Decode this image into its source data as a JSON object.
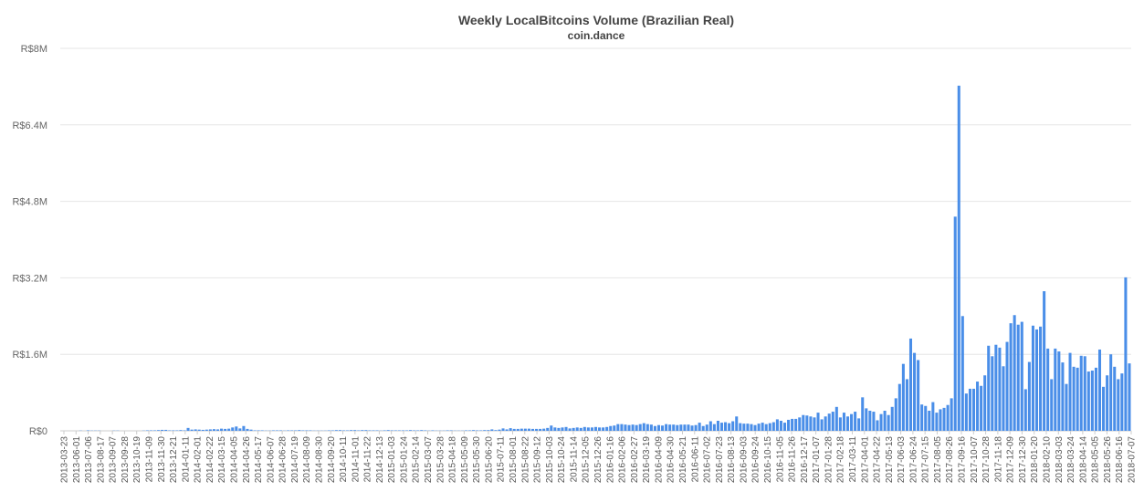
{
  "chart_data": {
    "type": "bar",
    "title": "Weekly LocalBitcoins Volume (Brazilian Real)",
    "subtitle": "coin.dance",
    "xlabel": "",
    "ylabel": "",
    "ylim": [
      0,
      8000000
    ],
    "y_ticks": [
      {
        "value": 0,
        "label": "R$0"
      },
      {
        "value": 1600000,
        "label": "R$1.6M"
      },
      {
        "value": 3200000,
        "label": "R$3.2M"
      },
      {
        "value": 4800000,
        "label": "R$4.8M"
      },
      {
        "value": 6400000,
        "label": "R$6.4M"
      },
      {
        "value": 8000000,
        "label": "R$8M"
      }
    ],
    "x_tick_labels": [
      "2013-03-23",
      "2013-06-01",
      "2013-07-06",
      "2013-08-17",
      "2013-09-07",
      "2013-09-28",
      "2013-10-19",
      "2013-11-09",
      "2013-11-30",
      "2013-12-21",
      "2014-01-11",
      "2014-02-01",
      "2014-02-22",
      "2014-03-15",
      "2014-04-05",
      "2014-04-26",
      "2014-05-17",
      "2014-06-07",
      "2014-06-28",
      "2014-07-19",
      "2014-08-09",
      "2014-08-30",
      "2014-09-20",
      "2014-10-11",
      "2014-11-01",
      "2014-11-22",
      "2014-12-13",
      "2015-01-03",
      "2015-01-24",
      "2015-02-14",
      "2015-03-07",
      "2015-03-28",
      "2015-04-18",
      "2015-05-09",
      "2015-05-30",
      "2015-06-20",
      "2015-07-11",
      "2015-08-01",
      "2015-08-22",
      "2015-09-12",
      "2015-10-03",
      "2015-10-24",
      "2015-11-14",
      "2015-12-05",
      "2015-12-26",
      "2016-01-16",
      "2016-02-06",
      "2016-02-27",
      "2016-03-19",
      "2016-04-09",
      "2016-04-30",
      "2016-05-21",
      "2016-06-11",
      "2016-07-02",
      "2016-07-23",
      "2016-08-13",
      "2016-09-03",
      "2016-09-24",
      "2016-10-15",
      "2016-11-05",
      "2016-11-26",
      "2016-12-17",
      "2017-01-07",
      "2017-01-28",
      "2017-02-18",
      "2017-03-11",
      "2017-04-01",
      "2017-04-22",
      "2017-05-13",
      "2017-06-03",
      "2017-06-24",
      "2017-07-15",
      "2017-08-05",
      "2017-08-26",
      "2017-09-16",
      "2017-10-07",
      "2017-10-28",
      "2017-11-18",
      "2017-12-09",
      "2017-12-30",
      "2018-01-20",
      "2018-02-10",
      "2018-03-03",
      "2018-03-24",
      "2018-04-14",
      "2018-05-05",
      "2018-05-26",
      "2018-06-16",
      "2018-07-07"
    ],
    "values": [
      0,
      0,
      0,
      0,
      0,
      5000,
      0,
      10000,
      5000,
      5000,
      5000,
      0,
      0,
      0,
      5000,
      5000,
      0,
      0,
      0,
      0,
      0,
      0,
      5000,
      10000,
      10000,
      10000,
      15000,
      20000,
      20000,
      10000,
      10000,
      10000,
      15000,
      10000,
      60000,
      25000,
      30000,
      25000,
      20000,
      25000,
      30000,
      35000,
      30000,
      45000,
      40000,
      45000,
      70000,
      90000,
      50000,
      100000,
      40000,
      25000,
      10000,
      10000,
      10000,
      5000,
      5000,
      10000,
      10000,
      10000,
      5000,
      10000,
      10000,
      10000,
      15000,
      10000,
      10000,
      10000,
      5000,
      5000,
      5000,
      5000,
      10000,
      10000,
      15000,
      15000,
      10000,
      10000,
      15000,
      15000,
      10000,
      15000,
      15000,
      10000,
      10000,
      10000,
      5000,
      10000,
      15000,
      10000,
      10000,
      10000,
      10000,
      10000,
      15000,
      10000,
      10000,
      15000,
      10000,
      5000,
      10000,
      5000,
      5000,
      5000,
      10000,
      10000,
      5000,
      5000,
      5000,
      10000,
      10000,
      15000,
      10000,
      10000,
      15000,
      15000,
      30000,
      15000,
      25000,
      50000,
      30000,
      55000,
      40000,
      40000,
      45000,
      45000,
      45000,
      40000,
      40000,
      40000,
      45000,
      60000,
      110000,
      70000,
      60000,
      70000,
      80000,
      50000,
      60000,
      70000,
      60000,
      80000,
      70000,
      70000,
      80000,
      70000,
      70000,
      80000,
      100000,
      110000,
      140000,
      140000,
      130000,
      120000,
      130000,
      120000,
      140000,
      160000,
      140000,
      130000,
      100000,
      120000,
      110000,
      140000,
      130000,
      130000,
      120000,
      130000,
      130000,
      130000,
      110000,
      120000,
      170000,
      100000,
      130000,
      200000,
      140000,
      210000,
      170000,
      180000,
      160000,
      200000,
      300000,
      160000,
      150000,
      150000,
      140000,
      120000,
      150000,
      170000,
      140000,
      160000,
      180000,
      240000,
      210000,
      170000,
      230000,
      250000,
      250000,
      280000,
      330000,
      320000,
      300000,
      280000,
      380000,
      240000,
      300000,
      360000,
      400000,
      500000,
      280000,
      380000,
      300000,
      350000,
      400000,
      260000,
      700000,
      470000,
      420000,
      400000,
      220000,
      350000,
      420000,
      330000,
      500000,
      680000,
      980000,
      1400000,
      1080000,
      1930000,
      1630000,
      1480000,
      550000,
      520000,
      420000,
      600000,
      380000,
      450000,
      480000,
      540000,
      680000,
      4480000,
      7220000,
      2400000,
      780000,
      880000,
      880000,
      1030000,
      940000,
      1160000,
      1780000,
      1560000,
      1800000,
      1740000,
      1350000,
      1860000,
      2250000,
      2420000,
      2220000,
      2280000,
      870000,
      1440000,
      2200000,
      2120000,
      2180000,
      2920000,
      1720000,
      1080000,
      1720000,
      1660000,
      1430000,
      980000,
      1630000,
      1340000,
      1320000,
      1570000,
      1560000,
      1240000,
      1260000,
      1320000,
      1700000,
      920000,
      1160000,
      1600000,
      1340000,
      1080000,
      1200000,
      3210000,
      1410000
    ]
  }
}
